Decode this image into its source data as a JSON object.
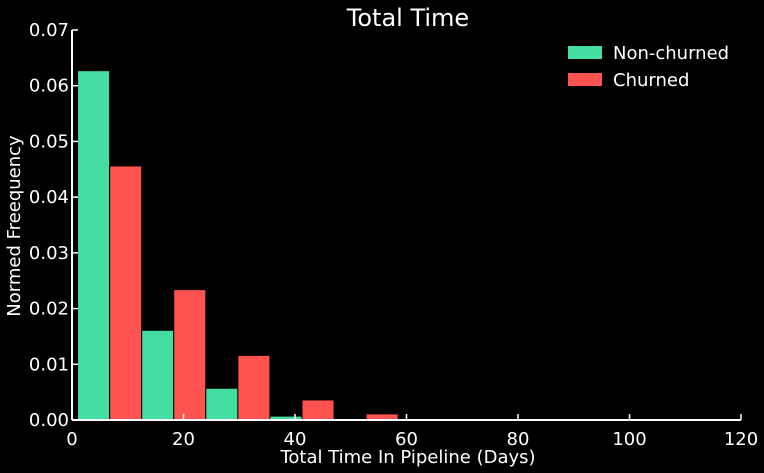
{
  "chart_data": {
    "type": "bar",
    "title": "Total Time",
    "xlabel": "Total Time In Pipeline (Days)",
    "ylabel": "Normed Freequency",
    "xlim": [
      0,
      120
    ],
    "ylim": [
      0,
      0.07
    ],
    "xticks": [
      0,
      20,
      40,
      60,
      80,
      100,
      120
    ],
    "xtick_labels": [
      "0",
      "20",
      "40",
      "60",
      "80",
      "100",
      "120"
    ],
    "yticks": [
      0.0,
      0.01,
      0.02,
      0.03,
      0.04,
      0.05,
      0.06,
      0.07
    ],
    "ytick_labels": [
      "0.00",
      "0.01",
      "0.02",
      "0.03",
      "0.04",
      "0.05",
      "0.06",
      "0.07"
    ],
    "bin_edges": [
      1,
      12.5,
      24,
      35.5,
      47,
      58.5,
      70,
      81.5,
      93,
      104.5,
      116
    ],
    "series": [
      {
        "name": "Non-churned",
        "color": "#44dda2",
        "values": [
          0.0627,
          0.0161,
          0.0057,
          0.0007,
          0.0,
          0.0,
          0.0,
          0.0,
          0.0,
          0.0
        ]
      },
      {
        "name": "Churned",
        "color": "#ff5350",
        "values": [
          0.0456,
          0.0234,
          0.0116,
          0.0036,
          0.0011,
          0.0002,
          0.0001,
          0.0001,
          0.0,
          0.0
        ]
      }
    ],
    "grid": false,
    "legend_position": "top-right"
  },
  "style": {
    "background": "#000000",
    "axis_color": "#ffffff",
    "text_color": "#ffffff"
  }
}
